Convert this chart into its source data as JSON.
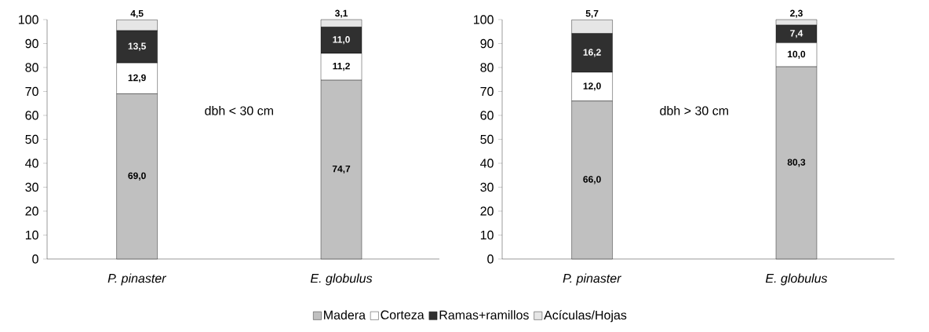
{
  "chart_data": [
    {
      "type": "bar",
      "stacked": true,
      "categories": [
        "*P. pinaster*",
        "*E. globulus*"
      ],
      "ylim": [
        0,
        100
      ],
      "yticks": [
        0,
        10,
        20,
        30,
        40,
        50,
        60,
        70,
        80,
        90,
        100
      ],
      "legend": "bottom",
      "annotations": [
        "dbh < 30 cm"
      ],
      "series": [
        {
          "name": "Madera",
          "color": "#c0c0c0",
          "values": [
            69.0,
            74.7
          ],
          "value_labels": [
            "69,0",
            "74,7"
          ]
        },
        {
          "name": "Corteza",
          "color": "#ffffff",
          "values": [
            12.9,
            11.2
          ],
          "value_labels": [
            "12,9",
            "11,2"
          ]
        },
        {
          "name": "Ramas+ramillos",
          "color": "#303030",
          "values": [
            13.5,
            11.0
          ],
          "value_labels": [
            "13,5",
            "11,0"
          ]
        },
        {
          "name": "Acículas/Hojas",
          "color": "#e6e6e6",
          "values": [
            4.5,
            3.1
          ],
          "value_labels": [
            "4,5",
            "3,1"
          ]
        }
      ]
    },
    {
      "type": "bar",
      "stacked": true,
      "categories": [
        "*P. pinaster*",
        "*E. globulus*"
      ],
      "ylim": [
        0,
        100
      ],
      "yticks": [
        0,
        10,
        20,
        30,
        40,
        50,
        60,
        70,
        80,
        90,
        100
      ],
      "annotations": [
        "dbh > 30 cm"
      ],
      "series": [
        {
          "color": "#c0c0c0",
          "values": [
            66.0,
            80.3
          ],
          "value_labels": [
            "66,0",
            "80,3"
          ]
        },
        {
          "color": "#ffffff",
          "values": [
            12.0,
            10.0
          ],
          "value_labels": [
            "12,0",
            "10,0"
          ]
        },
        {
          "color": "#303030",
          "values": [
            16.2,
            7.4
          ],
          "value_labels": [
            "16,2",
            "7,4"
          ]
        },
        {
          "color": "#e6e6e6",
          "values": [
            5.7,
            2.3
          ],
          "value_labels": [
            "5,7",
            "2,3"
          ]
        }
      ]
    }
  ]
}
